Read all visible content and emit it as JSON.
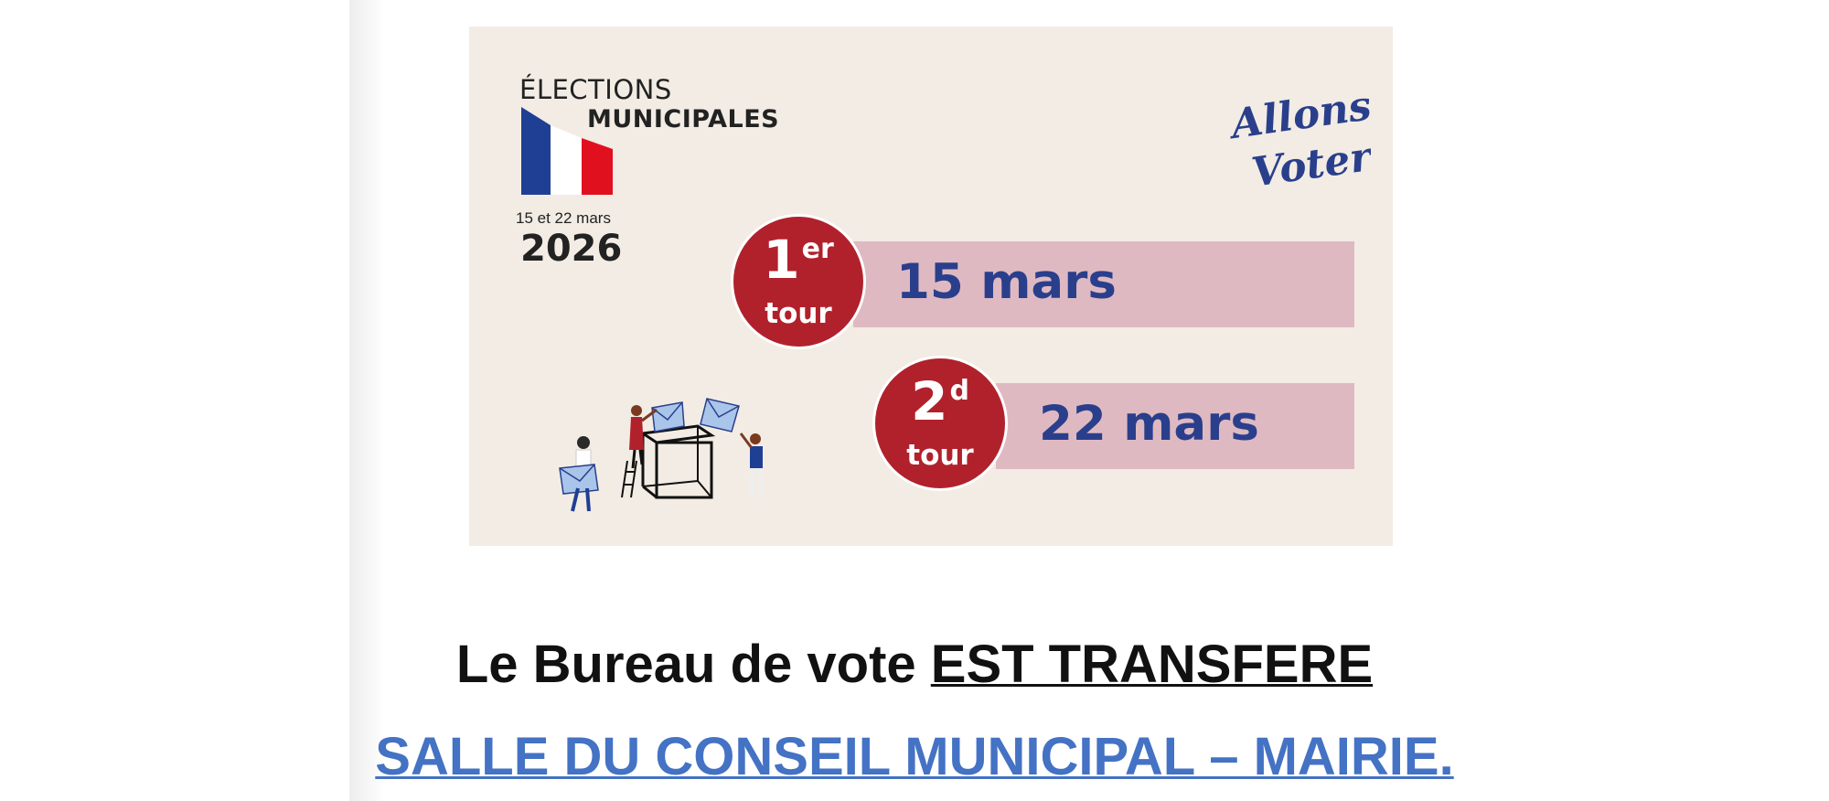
{
  "poster": {
    "logo": {
      "line1": "ÉLECTIONS",
      "line2": "MUNICIPALES",
      "dates": "15 et 22 mars",
      "year": "2026"
    },
    "slogan": "Allons Voter!",
    "tours": [
      {
        "number": "1",
        "suffix": "er",
        "label": "tour",
        "date": "15 mars"
      },
      {
        "number": "2",
        "suffix": "d",
        "label": "tour",
        "date": "22 mars"
      }
    ],
    "colors": {
      "background": "#f2ece4",
      "tour_circle": "#b1212c",
      "tour_bar": "#dfb9c2",
      "date_text": "#2a3f8c",
      "flag_blue": "#1f3f94",
      "flag_red": "#e1101f"
    }
  },
  "notice": {
    "line1_prefix": "Le Bureau de vote ",
    "line1_emphasis": "EST TRANSFERE",
    "line2": "SALLE DU CONSEIL MUNICIPAL – MAIRIE.",
    "link_color": "#4472c4"
  }
}
